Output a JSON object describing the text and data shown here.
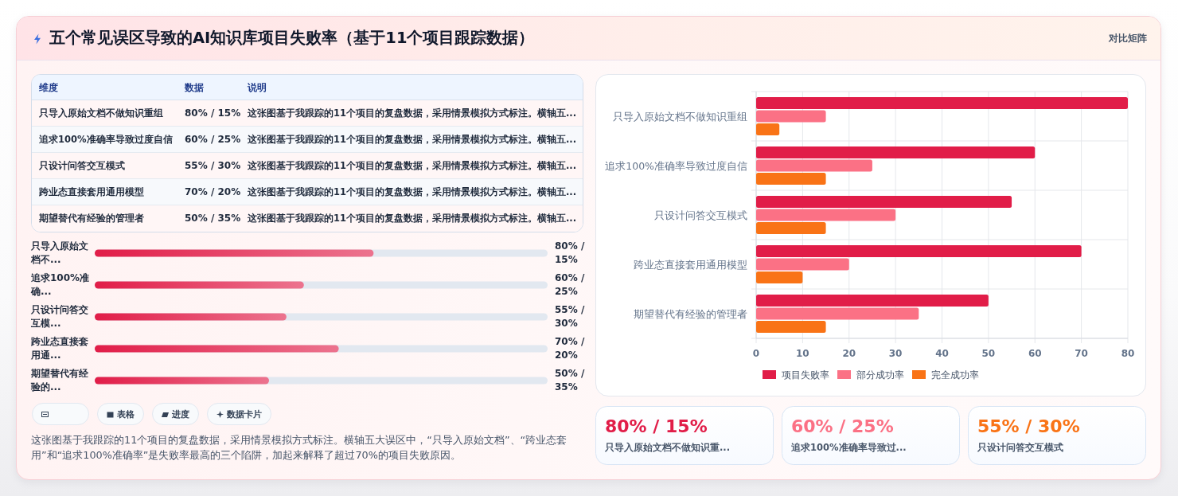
{
  "chart_data": [
    {
      "type": "other",
      "title": "五个常见误区导致的AI知识库项目失败率（基于11个项目跟踪数据）",
      "categories": [
        "只导入原始文档不做知识重组",
        "追求100%准确率导致过度自信",
        "只设计问答交互模式",
        "跨业态直接套用通用模型",
        "期望替代有经验的管理者"
      ],
      "value_labels": [
        "80% / 15%",
        "60% / 25%",
        "55% / 30%",
        "70% / 20%",
        "50% / 35%"
      ],
      "annotations": [
        "对比矩阵",
        "维度",
        "数据",
        "说明",
        "这张图基于我跟踪的11个项目的复盘数据，采用情景模拟方式标注。横轴五...",
        "这张图基于我跟踪的11个项目的复盘数据，采用情景模拟方式标注。横轴五...",
        "这张图基于我跟踪的11个项目的复盘数据，采用情景模拟方式标注。横轴五...",
        "这张图基于我跟踪的11个项目的复盘数据，采用情景模拟方式标注。横轴五...",
        "这张图基于我跟踪的11个项目的复盘数据，采用情景模拟方式标注。横轴五..."
      ]
    },
    {
      "type": "bar",
      "orientation": "horizontal",
      "categories": [
        "只导入原始文档不做知识重组",
        "追求100%准确率导致过度自信",
        "只设计问答交互模式",
        "跨业态直接套用通用模型",
        "期望替代有经验的管理者"
      ],
      "series": [
        {
          "name": "项目失败率",
          "color": "#e11d48",
          "values": [
            80,
            60,
            55,
            70,
            50
          ]
        },
        {
          "name": "部分成功率",
          "color": "#fb7185",
          "values": [
            15,
            25,
            30,
            20,
            35
          ]
        },
        {
          "name": "完全成功率",
          "color": "#f97316",
          "values": [
            5,
            15,
            15,
            10,
            15
          ]
        }
      ],
      "xlim": [
        0,
        80
      ],
      "xticks": [
        0,
        10,
        20,
        30,
        40,
        50,
        60,
        70,
        80
      ],
      "grid": true,
      "legend": "bottom"
    },
    {
      "type": "bar",
      "orientation": "horizontal",
      "categories": [
        "只导入原始文档不...",
        "追求100%准确...",
        "只设计问答交互模...",
        "跨业态直接套用通...",
        "期望替代有经验的..."
      ],
      "values": [
        80,
        60,
        55,
        70,
        50
      ],
      "color": "#e11d48",
      "value_labels": [
        "80% / 15%",
        "60% / 25%",
        "55% / 30%",
        "70% / 20%",
        "50% / 35%"
      ],
      "annotations": [
        "表格",
        "进度",
        "数据卡片",
        "这张图基于我跟踪的11个项目的复盘数据，采用情景模拟方式标注。横轴五大误区中，“只导入原始文档”、“跨业态套用”和“追求100%准确率”是失败率最高的三个陷阱，加起来解释了超过70%的项目失败原因。"
      ]
    },
    {
      "type": "other",
      "categories": [
        "只导入原始文档不做知识重...",
        "追求100%准确率导致过...",
        "只设计问答交互模式"
      ],
      "value_labels": [
        "80% / 15%",
        "60% / 25%",
        "55% / 30%"
      ],
      "colors": [
        "#e11d48",
        "#fb7185",
        "#f97316"
      ]
    }
  ]
}
